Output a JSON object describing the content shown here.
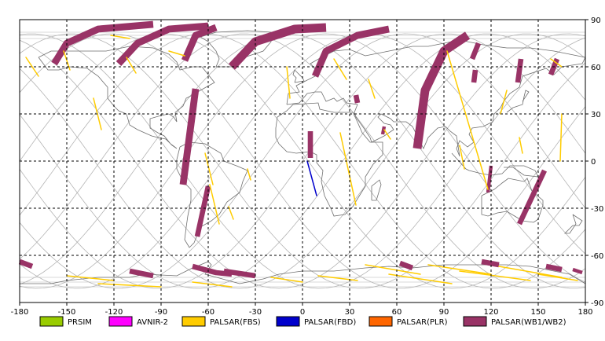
{
  "map": {
    "x_ticks": [
      "-180",
      "-150",
      "-120",
      "-90",
      "-60",
      "-30",
      "0",
      "30",
      "60",
      "90",
      "120",
      "150",
      "180"
    ],
    "y_ticks": [
      "90",
      "60",
      "30",
      "0",
      "-30",
      "-60",
      "-90"
    ],
    "x_range": [
      -180,
      180
    ],
    "y_range": [
      -90,
      90
    ],
    "grid": "dashed",
    "colors": {
      "orbit_track": "#b4b4b4",
      "coastline": "#6e6e6e",
      "grid": "#000000"
    }
  },
  "legend": {
    "items": [
      {
        "label": "PRSIM",
        "color": "#99cc00"
      },
      {
        "label": "AVNIR-2",
        "color": "#ff00ff"
      },
      {
        "label": "PALSAR(FBS)",
        "color": "#ffcc00"
      },
      {
        "label": "PALSAR(FBD)",
        "color": "#0000cc"
      },
      {
        "label": "PALSAR(PLR)",
        "color": "#ff6600"
      },
      {
        "label": "PALSAR(WB1/WB2)",
        "color": "#993366"
      }
    ]
  },
  "chart_data": {
    "type": "map",
    "xlim": [
      -180,
      180
    ],
    "ylim": [
      -90,
      90
    ],
    "series": [
      {
        "name": "PALSAR(WB1/WB2)",
        "strips": [
          {
            "path": [
              [
                -158,
                62
              ],
              [
                -150,
                75
              ],
              [
                -130,
                84
              ],
              [
                -95,
                87
              ]
            ],
            "w": 4
          },
          {
            "path": [
              [
                -117,
                62
              ],
              [
                -105,
                75
              ],
              [
                -85,
                84
              ],
              [
                -60,
                86
              ]
            ],
            "w": 4
          },
          {
            "path": [
              [
                -75,
                64
              ],
              [
                -68,
                80
              ],
              [
                -55,
                85
              ]
            ],
            "w": 4
          },
          {
            "path": [
              [
                -68,
                46
              ],
              [
                -76,
                -15
              ]
            ],
            "w": 4
          },
          {
            "path": [
              [
                -60,
                -16
              ],
              [
                -67,
                -48
              ]
            ],
            "w": 3
          },
          {
            "path": [
              [
                -45,
                60
              ],
              [
                -30,
                76
              ],
              [
                -5,
                84
              ],
              [
                15,
                85
              ]
            ],
            "w": 5
          },
          {
            "path": [
              [
                8,
                54
              ],
              [
                15,
                70
              ],
              [
                35,
                80
              ],
              [
                55,
                84
              ]
            ],
            "w": 4
          },
          {
            "path": [
              [
                73,
                8
              ],
              [
                78,
                45
              ],
              [
                90,
                70
              ],
              [
                105,
                80
              ]
            ],
            "w": 5
          },
          {
            "path": [
              [
                108,
                65
              ],
              [
                112,
                75
              ]
            ],
            "w": 3
          },
          {
            "path": [
              [
                109,
                50
              ],
              [
                110,
                58
              ]
            ],
            "w": 3
          },
          {
            "path": [
              [
                137,
                50
              ],
              [
                139,
                65
              ]
            ],
            "w": 3
          },
          {
            "path": [
              [
                158,
                55
              ],
              [
                162,
                65
              ]
            ],
            "w": 3
          },
          {
            "path": [
              [
                154,
                -6
              ],
              [
                138,
                -40
              ]
            ],
            "w": 3
          },
          {
            "path": [
              [
                120,
                -3
              ],
              [
                118,
                -20
              ]
            ],
            "w": 2
          },
          {
            "path": [
              [
                5,
                19
              ],
              [
                5,
                2
              ]
            ],
            "w": 3
          },
          {
            "path": [
              [
                52,
                22
              ],
              [
                51,
                17
              ]
            ],
            "w": 2
          },
          {
            "path": [
              [
                34,
                42
              ],
              [
                35,
                37
              ]
            ],
            "w": 3
          },
          {
            "path": [
              [
                -180,
                -64
              ],
              [
                -172,
                -67
              ]
            ],
            "w": 3
          },
          {
            "path": [
              [
                -110,
                -70
              ],
              [
                -95,
                -73
              ]
            ],
            "w": 3
          },
          {
            "path": [
              [
                -70,
                -67
              ],
              [
                -55,
                -71
              ],
              [
                -45,
                -72
              ]
            ],
            "w": 3
          },
          {
            "path": [
              [
                -50,
                -70
              ],
              [
                -30,
                -73
              ]
            ],
            "w": 3
          },
          {
            "path": [
              [
                62,
                -65
              ],
              [
                70,
                -68
              ]
            ],
            "w": 3
          },
          {
            "path": [
              [
                114,
                -64
              ],
              [
                125,
                -66
              ]
            ],
            "w": 3
          },
          {
            "path": [
              [
                155,
                -67
              ],
              [
                165,
                -69
              ]
            ],
            "w": 3
          },
          {
            "path": [
              [
                172,
                -69
              ],
              [
                178,
                -71
              ]
            ],
            "w": 2
          }
        ]
      },
      {
        "name": "PALSAR(FBS)",
        "strips": [
          {
            "path": [
              [
                -176,
                66
              ],
              [
                -168,
                54
              ]
            ],
            "w": 1
          },
          {
            "path": [
              [
                -152,
                70
              ],
              [
                -148,
                58
              ]
            ],
            "w": 1
          },
          {
            "path": [
              [
                -133,
                40
              ],
              [
                -128,
                20
              ]
            ],
            "w": 1
          },
          {
            "path": [
              [
                -112,
                66
              ],
              [
                -106,
                56
              ]
            ],
            "w": 1
          },
          {
            "path": [
              [
                -62,
                5
              ],
              [
                -57,
                -15
              ]
            ],
            "w": 1
          },
          {
            "path": [
              [
                -59,
                -15
              ],
              [
                -53,
                -40
              ]
            ],
            "w": 1
          },
          {
            "path": [
              [
                -35,
                -5
              ],
              [
                -33,
                -12
              ]
            ],
            "w": 1
          },
          {
            "path": [
              [
                -47,
                -29
              ],
              [
                -44,
                -37
              ]
            ],
            "w": 1
          },
          {
            "path": [
              [
                -10,
                60
              ],
              [
                -8,
                40
              ]
            ],
            "w": 1
          },
          {
            "path": [
              [
                20,
                65
              ],
              [
                28,
                52
              ]
            ],
            "w": 1
          },
          {
            "path": [
              [
                24,
                18
              ],
              [
                34,
                -28
              ]
            ],
            "w": 1
          },
          {
            "path": [
              [
                42,
                52
              ],
              [
                46,
                40
              ]
            ],
            "w": 1
          },
          {
            "path": [
              [
                52,
                20
              ],
              [
                56,
                14
              ]
            ],
            "w": 1
          },
          {
            "path": [
              [
                92,
                70
              ],
              [
                118,
                -18
              ]
            ],
            "w": 1
          },
          {
            "path": [
              [
                100,
                10
              ],
              [
                103,
                -5
              ]
            ],
            "w": 1
          },
          {
            "path": [
              [
                130,
                45
              ],
              [
                126,
                30
              ]
            ],
            "w": 1
          },
          {
            "path": [
              [
                138,
                15
              ],
              [
                140,
                5
              ]
            ],
            "w": 1
          },
          {
            "path": [
              [
                158,
                65
              ],
              [
                165,
                60
              ]
            ],
            "w": 1
          },
          {
            "path": [
              [
                165,
                30
              ],
              [
                164,
                0
              ]
            ],
            "w": 1
          },
          {
            "path": [
              [
                -122,
                80
              ],
              [
                -110,
                78
              ]
            ],
            "w": 1
          },
          {
            "path": [
              [
                -85,
                70
              ],
              [
                -75,
                67
              ]
            ],
            "w": 1
          },
          {
            "path": [
              [
                -150,
                -73
              ],
              [
                -120,
                -76
              ]
            ],
            "w": 1
          },
          {
            "path": [
              [
                -130,
                -78
              ],
              [
                -90,
                -80
              ]
            ],
            "w": 1
          },
          {
            "path": [
              [
                -70,
                -77
              ],
              [
                -45,
                -80
              ]
            ],
            "w": 1
          },
          {
            "path": [
              [
                -20,
                -74
              ],
              [
                0,
                -77
              ]
            ],
            "w": 1
          },
          {
            "path": [
              [
                10,
                -73
              ],
              [
                35,
                -76
              ]
            ],
            "w": 1
          },
          {
            "path": [
              [
                40,
                -66
              ],
              [
                75,
                -72
              ]
            ],
            "w": 1
          },
          {
            "path": [
              [
                55,
                -72
              ],
              [
                95,
                -78
              ]
            ],
            "w": 1
          },
          {
            "path": [
              [
                80,
                -66
              ],
              [
                120,
                -72
              ]
            ],
            "w": 1
          },
          {
            "path": [
              [
                100,
                -70
              ],
              [
                145,
                -76
              ]
            ],
            "w": 1
          },
          {
            "path": [
              [
                125,
                -67
              ],
              [
                165,
                -74
              ]
            ],
            "w": 1
          },
          {
            "path": [
              [
                150,
                -72
              ],
              [
                175,
                -76
              ]
            ],
            "w": 1
          }
        ]
      },
      {
        "name": "PALSAR(FBD)",
        "strips": [
          {
            "path": [
              [
                3,
                0
              ],
              [
                9,
                -22
              ]
            ],
            "w": 1
          }
        ]
      }
    ]
  }
}
